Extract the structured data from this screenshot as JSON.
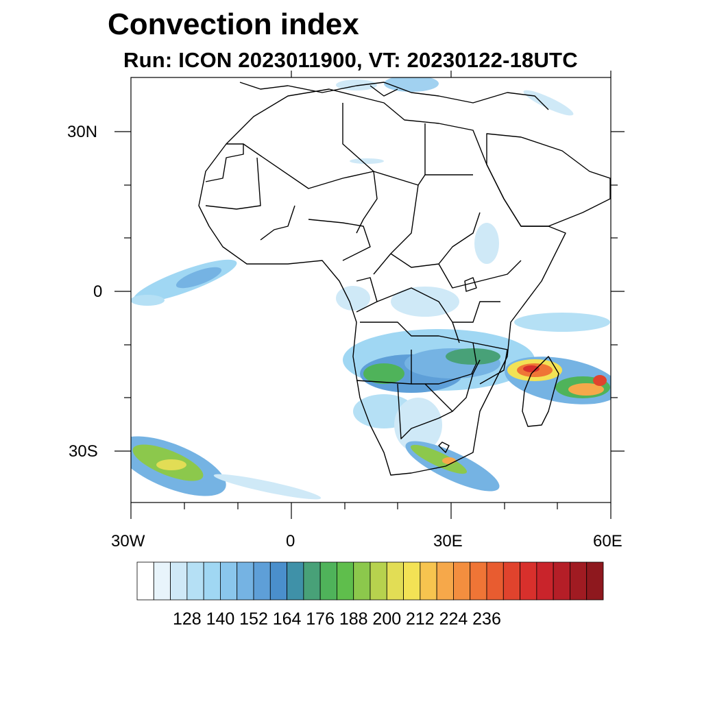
{
  "title": "Convection index",
  "subtitle": "Run: ICON 2023011900,  VT: 20230122-18UTC",
  "map": {
    "lon_range": [
      -30,
      60
    ],
    "lat_range": [
      -40,
      40
    ],
    "x_ticks": [
      "30W",
      "0",
      "30E",
      "60E"
    ],
    "y_ticks": [
      "30N",
      "0",
      "30S"
    ]
  },
  "colorbar": {
    "colors": [
      "#ffffff",
      "#e8f4fb",
      "#cfe9f7",
      "#b5e0f5",
      "#a0d7f3",
      "#8ac6ec",
      "#75b3e3",
      "#5e9fd8",
      "#4a8fcc",
      "#3f91a8",
      "#48a178",
      "#4fb35a",
      "#5fbe4c",
      "#8cc84c",
      "#b7d24e",
      "#e2dd55",
      "#f3e255",
      "#f7c44f",
      "#f6a84a",
      "#f38e3f",
      "#ef7536",
      "#e85c30",
      "#e0432d",
      "#d8302c",
      "#c9242b",
      "#b51e27",
      "#a01b22",
      "#8e181e"
    ],
    "labels": [
      "128",
      "140",
      "152",
      "164",
      "176",
      "188",
      "200",
      "212",
      "224",
      "236"
    ]
  }
}
